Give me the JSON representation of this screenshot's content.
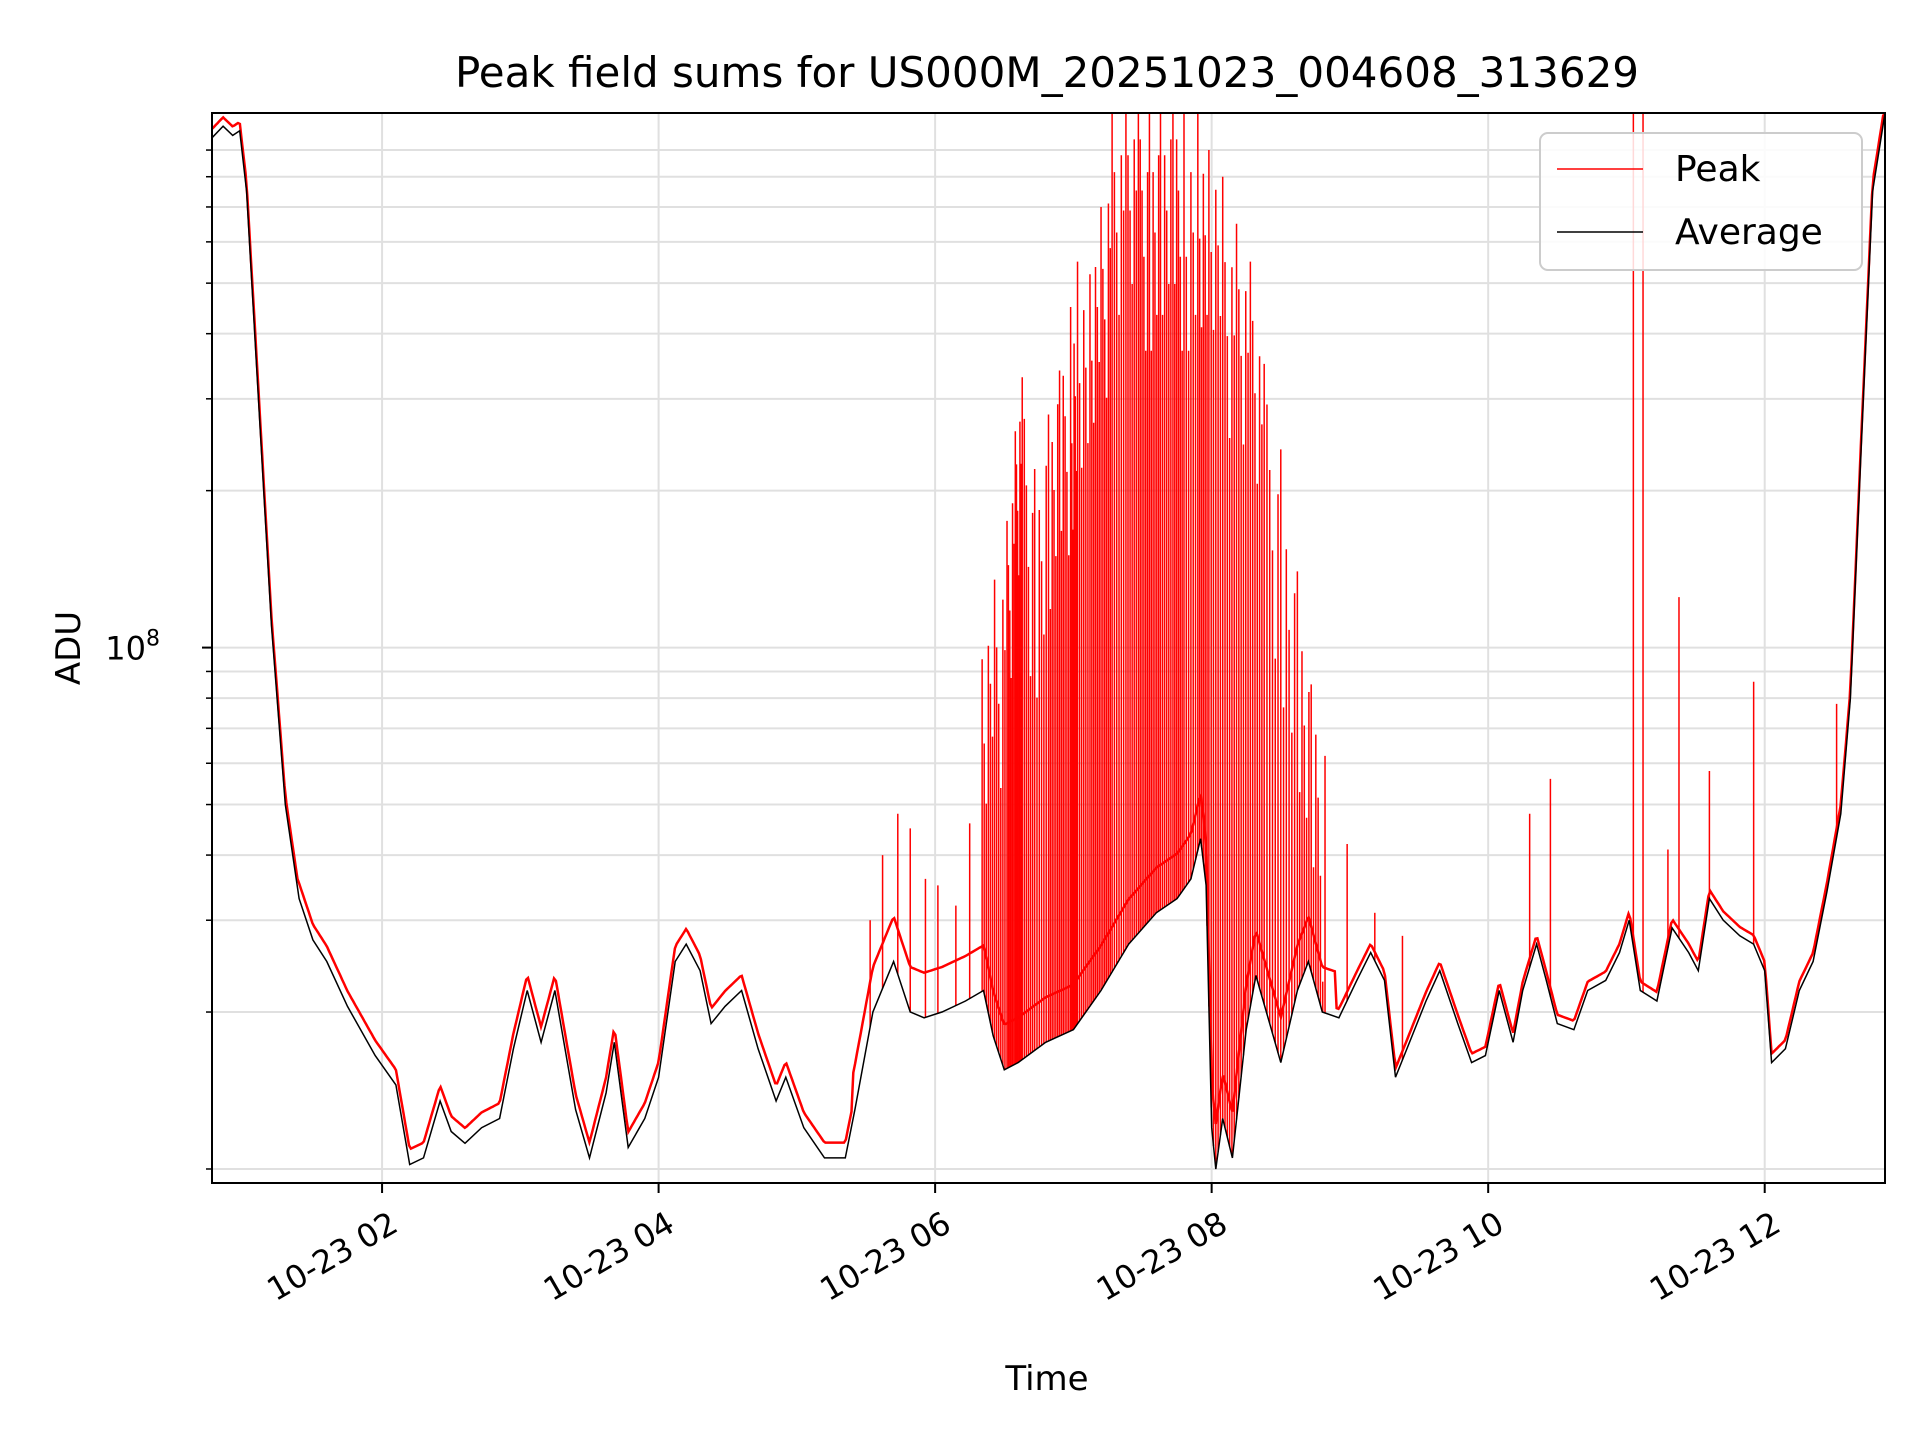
{
  "chart_data": {
    "type": "line",
    "title": "Peak field sums for US000M_20251023_004608_313629",
    "xlabel": "Time",
    "ylabel": "ADU",
    "yscale": "log",
    "xlim_hours": [
      0.77,
      12.87
    ],
    "ylim": [
      9400000,
      1060000000
    ],
    "grid": true,
    "legend_loc": "upper right",
    "colors": {
      "peak": "#ff0000",
      "average": "#000000",
      "grid": "#e0e0e0",
      "legend_border": "#cccccc"
    },
    "xticks": [
      {
        "hour": 2,
        "label": "10-23 02"
      },
      {
        "hour": 4,
        "label": "10-23 04"
      },
      {
        "hour": 6,
        "label": "10-23 06"
      },
      {
        "hour": 8,
        "label": "10-23 08"
      },
      {
        "hour": 10,
        "label": "10-23 10"
      },
      {
        "hour": 12,
        "label": "10-23 12"
      }
    ],
    "yticks_major": [
      {
        "value": 100000000,
        "base": "10",
        "exp": "8"
      }
    ],
    "yticks_minor": [
      10000000,
      20000000,
      30000000,
      40000000,
      50000000,
      60000000,
      70000000,
      80000000,
      90000000,
      200000000,
      300000000,
      400000000,
      500000000,
      600000000,
      700000000,
      800000000,
      900000000
    ],
    "series": [
      {
        "name": "Peak",
        "style": "spiky envelope above Average",
        "spikes": [
          [
            5.53,
            30000000.0
          ],
          [
            5.62,
            40000000.0
          ],
          [
            5.73,
            48000000.0
          ],
          [
            5.82,
            45000000.0
          ],
          [
            5.93,
            36000000.0
          ],
          [
            6.02,
            35000000.0
          ],
          [
            6.15,
            32000000.0
          ],
          [
            6.25,
            46000000.0
          ],
          [
            6.34,
            95000000.0
          ],
          [
            6.43,
            135000000.0
          ],
          [
            6.52,
            175000000.0
          ],
          [
            6.58,
            260000000.0
          ],
          [
            6.63,
            330000000.0
          ],
          [
            6.72,
            220000000.0
          ],
          [
            6.82,
            280000000.0
          ],
          [
            6.9,
            340000000.0
          ],
          [
            6.98,
            450000000.0
          ],
          [
            7.03,
            550000000.0
          ],
          [
            7.12,
            520000000.0
          ],
          [
            7.2,
            700000000.0
          ],
          [
            7.28,
            1060000000.0
          ],
          [
            7.38,
            1060000000.0
          ],
          [
            7.47,
            1060000000.0
          ],
          [
            7.55,
            1060000000.0
          ],
          [
            7.63,
            1060000000.0
          ],
          [
            7.72,
            1060000000.0
          ],
          [
            7.8,
            1060000000.0
          ],
          [
            7.9,
            1060000000.0
          ],
          [
            7.98,
            900000000.0
          ],
          [
            8.08,
            800000000.0
          ],
          [
            8.18,
            650000000.0
          ],
          [
            8.28,
            550000000.0
          ],
          [
            8.38,
            350000000.0
          ],
          [
            8.5,
            240000000.0
          ],
          [
            8.62,
            140000000.0
          ],
          [
            8.72,
            85000000.0
          ],
          [
            8.82,
            62000000.0
          ],
          [
            8.98,
            42000000.0
          ],
          [
            9.18,
            31000000.0
          ],
          [
            9.38,
            28000000.0
          ],
          [
            10.3,
            48000000.0
          ],
          [
            10.45,
            56000000.0
          ],
          [
            11.05,
            1060000000.0
          ],
          [
            11.12,
            1060000000.0
          ],
          [
            11.3,
            41000000.0
          ],
          [
            11.38,
            125000000.0
          ],
          [
            11.6,
            58000000.0
          ],
          [
            11.92,
            86000000.0
          ],
          [
            12.52,
            78000000.0
          ]
        ]
      },
      {
        "name": "Average",
        "points": [
          [
            0.77,
            950000000.0
          ],
          [
            0.85,
            1000000000.0
          ],
          [
            0.92,
            960000000.0
          ],
          [
            0.97,
            980000000.0
          ],
          [
            1.02,
            750000000.0
          ],
          [
            1.1,
            320000000.0
          ],
          [
            1.2,
            110000000.0
          ],
          [
            1.3,
            50000000.0
          ],
          [
            1.4,
            33000000.0
          ],
          [
            1.5,
            27500000.0
          ],
          [
            1.6,
            25000000.0
          ],
          [
            1.75,
            20500000.0
          ],
          [
            1.95,
            16500000.0
          ],
          [
            2.1,
            14500000.0
          ],
          [
            2.2,
            10200000.0
          ],
          [
            2.3,
            10500000.0
          ],
          [
            2.42,
            13500000.0
          ],
          [
            2.5,
            11800000.0
          ],
          [
            2.6,
            11200000.0
          ],
          [
            2.72,
            12000000.0
          ],
          [
            2.85,
            12500000.0
          ],
          [
            2.95,
            17000000.0
          ],
          [
            3.05,
            22000000.0
          ],
          [
            3.15,
            17500000.0
          ],
          [
            3.25,
            22000000.0
          ],
          [
            3.4,
            13000000.0
          ],
          [
            3.5,
            10500000.0
          ],
          [
            3.62,
            14000000.0
          ],
          [
            3.68,
            17500000.0
          ],
          [
            3.78,
            11000000.0
          ],
          [
            3.9,
            12500000.0
          ],
          [
            4.0,
            15000000.0
          ],
          [
            4.12,
            25000000.0
          ],
          [
            4.2,
            27000000.0
          ],
          [
            4.3,
            24000000.0
          ],
          [
            4.38,
            19000000.0
          ],
          [
            4.48,
            20500000.0
          ],
          [
            4.6,
            22000000.0
          ],
          [
            4.72,
            17000000.0
          ],
          [
            4.85,
            13500000.0
          ],
          [
            4.92,
            15000000.0
          ],
          [
            5.05,
            12000000.0
          ],
          [
            5.2,
            10500000.0
          ],
          [
            5.35,
            10500000.0
          ],
          [
            5.42,
            13000000.0
          ],
          [
            5.55,
            20000000.0
          ],
          [
            5.7,
            25000000.0
          ],
          [
            5.82,
            20000000.0
          ],
          [
            5.92,
            19500000.0
          ],
          [
            6.05,
            20000000.0
          ],
          [
            6.22,
            21000000.0
          ],
          [
            6.35,
            22000000.0
          ],
          [
            6.42,
            18000000.0
          ],
          [
            6.5,
            15500000.0
          ],
          [
            6.6,
            16000000.0
          ],
          [
            6.8,
            17500000.0
          ],
          [
            7.0,
            18500000.0
          ],
          [
            7.2,
            22000000.0
          ],
          [
            7.4,
            27000000.0
          ],
          [
            7.6,
            31000000.0
          ],
          [
            7.75,
            33000000.0
          ],
          [
            7.85,
            36000000.0
          ],
          [
            7.92,
            43000000.0
          ],
          [
            7.96,
            35000000.0
          ],
          [
            8.0,
            12000000.0
          ],
          [
            8.03,
            10000000.0
          ],
          [
            8.08,
            12500000.0
          ],
          [
            8.15,
            10500000.0
          ],
          [
            8.25,
            18500000.0
          ],
          [
            8.32,
            23500000.0
          ],
          [
            8.42,
            19000000.0
          ],
          [
            8.5,
            16000000.0
          ],
          [
            8.62,
            22000000.0
          ],
          [
            8.7,
            25000000.0
          ],
          [
            8.8,
            20000000.0
          ],
          [
            8.92,
            19500000.0
          ],
          [
            9.05,
            23000000.0
          ],
          [
            9.15,
            26000000.0
          ],
          [
            9.25,
            23000000.0
          ],
          [
            9.33,
            15000000.0
          ],
          [
            9.45,
            18000000.0
          ],
          [
            9.55,
            21000000.0
          ],
          [
            9.65,
            24000000.0
          ],
          [
            9.78,
            19000000.0
          ],
          [
            9.88,
            16000000.0
          ],
          [
            9.98,
            16500000.0
          ],
          [
            10.08,
            22000000.0
          ],
          [
            10.18,
            17500000.0
          ],
          [
            10.25,
            22000000.0
          ],
          [
            10.35,
            27000000.0
          ],
          [
            10.42,
            23000000.0
          ],
          [
            10.5,
            19000000.0
          ],
          [
            10.62,
            18500000.0
          ],
          [
            10.72,
            22000000.0
          ],
          [
            10.85,
            23000000.0
          ],
          [
            10.95,
            26000000.0
          ],
          [
            11.02,
            30000000.0
          ],
          [
            11.1,
            22000000.0
          ],
          [
            11.22,
            21000000.0
          ],
          [
            11.33,
            29000000.0
          ],
          [
            11.45,
            26000000.0
          ],
          [
            11.52,
            24000000.0
          ],
          [
            11.6,
            33000000.0
          ],
          [
            11.7,
            30000000.0
          ],
          [
            11.82,
            28000000.0
          ],
          [
            11.92,
            27000000.0
          ],
          [
            12.0,
            24000000.0
          ],
          [
            12.05,
            16000000.0
          ],
          [
            12.15,
            17000000.0
          ],
          [
            12.25,
            22000000.0
          ],
          [
            12.35,
            25000000.0
          ],
          [
            12.45,
            34000000.0
          ],
          [
            12.55,
            48000000.0
          ],
          [
            12.62,
            80000000.0
          ],
          [
            12.7,
            250000000.0
          ],
          [
            12.78,
            750000000.0
          ],
          [
            12.87,
            1060000000.0
          ]
        ]
      }
    ]
  }
}
